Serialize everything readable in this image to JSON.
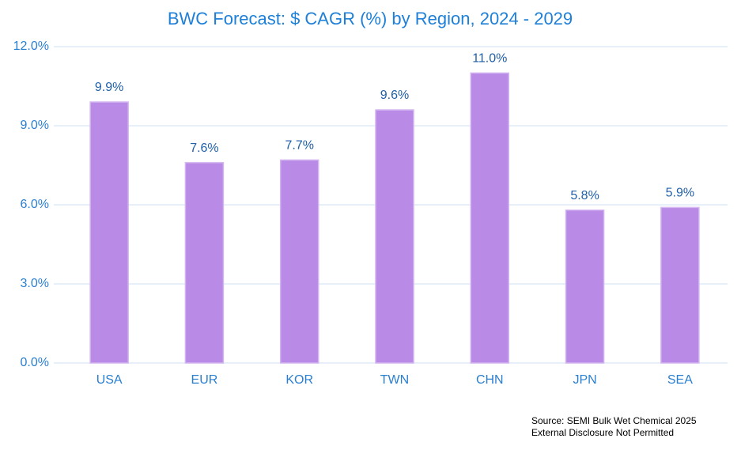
{
  "chart_data": {
    "type": "bar",
    "title": "BWC Forecast:  $ CAGR (%) by Region,  2024 - 2029",
    "categories": [
      "USA",
      "EUR",
      "KOR",
      "TWN",
      "CHN",
      "JPN",
      "SEA"
    ],
    "values": [
      9.9,
      7.6,
      7.7,
      9.6,
      11.0,
      5.8,
      5.9
    ],
    "value_labels": [
      "9.9%",
      "7.6%",
      "7.7%",
      "9.6%",
      "11.0%",
      "5.8%",
      "5.9%"
    ],
    "color": "#b98be6",
    "ylim": [
      0,
      12
    ],
    "yticks": [
      {
        "value": 0,
        "label": "0.0%"
      },
      {
        "value": 3,
        "label": "3.0%"
      },
      {
        "value": 6,
        "label": "6.0%"
      },
      {
        "value": 9,
        "label": "9.0%"
      },
      {
        "value": 12,
        "label": "12.0%"
      }
    ],
    "grid": true,
    "source": [
      "Source: SEMI Bulk Wet Chemical 2025",
      "External Disclosure Not Permitted"
    ]
  }
}
